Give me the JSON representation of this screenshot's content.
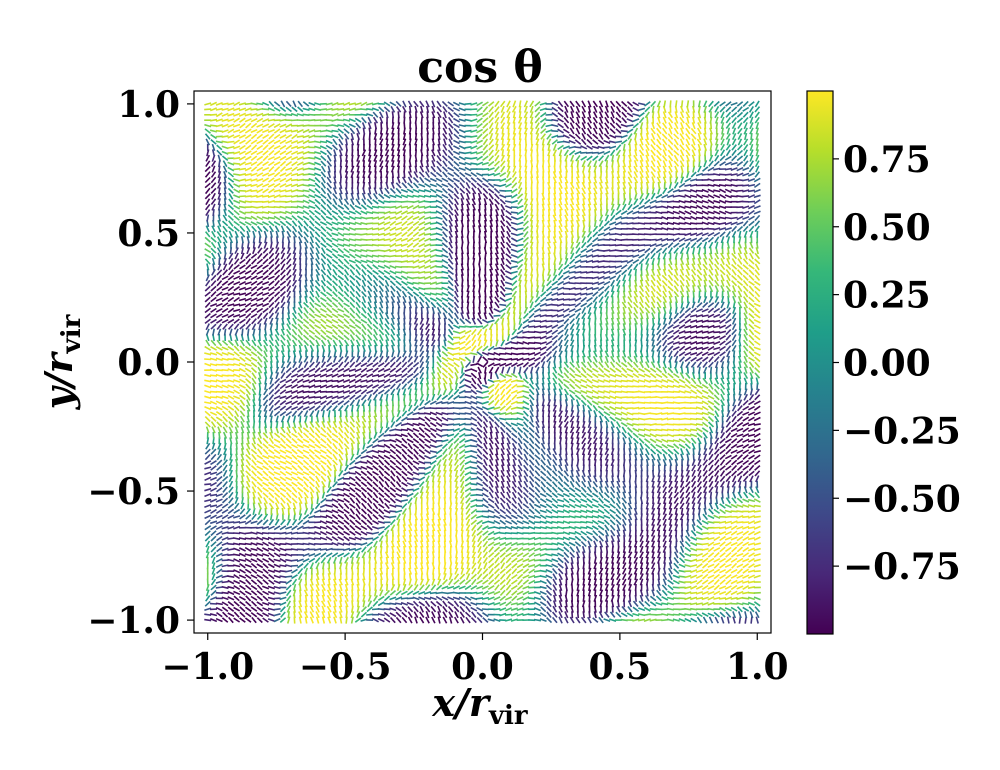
{
  "chart_data": {
    "type": "heatmap",
    "title": "cos θ",
    "xlabel": "x/r_vir",
    "ylabel": "y/r_vir",
    "xlabel_parts": {
      "main": "x/r",
      "sub": "vir"
    },
    "ylabel_parts": {
      "main": "y/r",
      "sub": "vir"
    },
    "xlim": [
      -1.05,
      1.05
    ],
    "ylim": [
      -1.05,
      1.05
    ],
    "data_extent": [
      -1.0,
      1.0
    ],
    "x_ticks": [
      -1.0,
      -0.5,
      0.0,
      0.5,
      1.0
    ],
    "x_tick_labels": [
      "−1.0",
      "−0.5",
      "0.0",
      "0.5",
      "1.0"
    ],
    "y_ticks": [
      -1.0,
      -0.5,
      0.0,
      0.5,
      1.0
    ],
    "y_tick_labels": [
      "−1.0",
      "−0.5",
      "0.0",
      "0.5",
      "1.0"
    ],
    "colorbar": {
      "vmin": -1.0,
      "vmax": 1.0,
      "colormap": "viridis",
      "ticks": [
        0.75,
        0.5,
        0.25,
        0.0,
        -0.25,
        -0.5,
        -0.75
      ],
      "tick_labels": [
        "0.75",
        "0.50",
        "0.25",
        "0.00",
        "−0.25",
        "−0.50",
        "−0.75"
      ]
    },
    "description": "Field of short oriented segments colored by cos θ; noisy mix of values between -1 and 1 with finer structure near the center.",
    "grid": false
  },
  "colors": {
    "viridis_stops": [
      "#440154",
      "#482878",
      "#3e4989",
      "#31688e",
      "#26828e",
      "#1f9e89",
      "#35b779",
      "#6ece58",
      "#b5de2b",
      "#fde725"
    ],
    "axis": "#000000",
    "background": "#ffffff"
  }
}
